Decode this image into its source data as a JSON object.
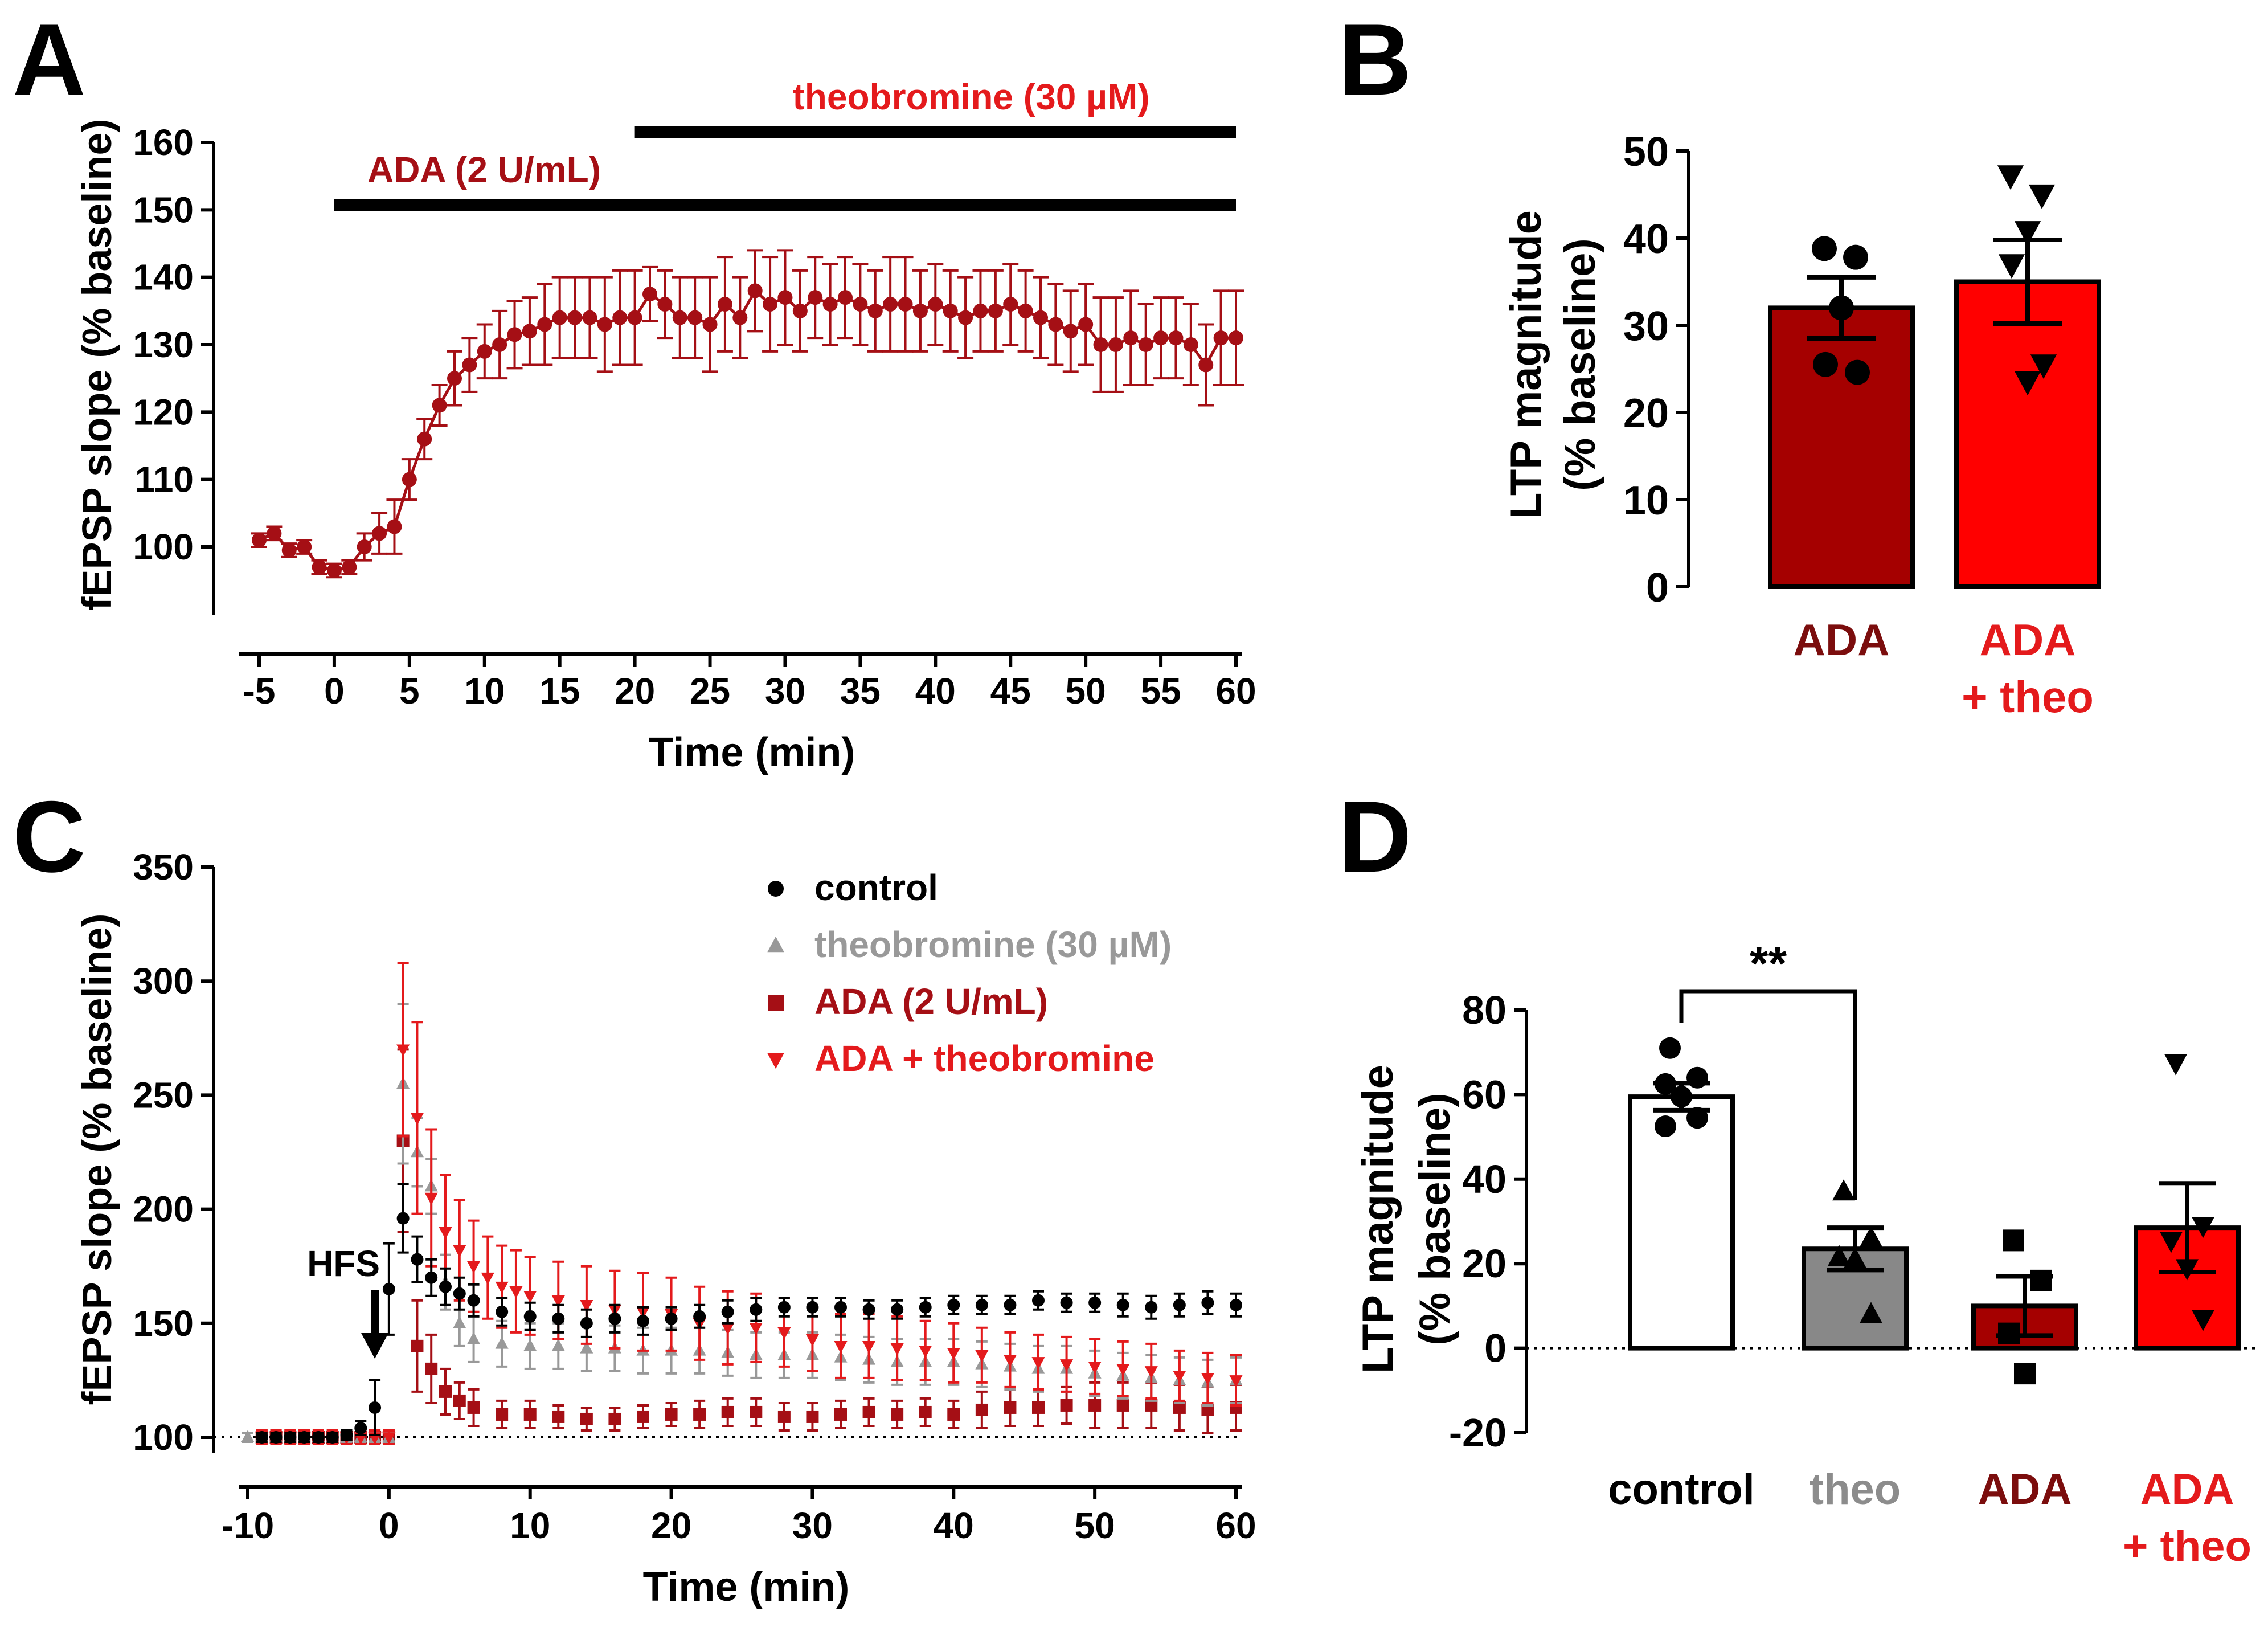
{
  "panel_letters": [
    "A",
    "B",
    "C",
    "D"
  ],
  "chart_data": [
    {
      "panel": "A",
      "type": "line",
      "xlabel": "Time (min)",
      "ylabel": "fEPSP slope (% baseline)",
      "xlim": [
        -5,
        60
      ],
      "ylim": [
        90,
        160
      ],
      "xticks": [
        "-5",
        "0",
        "5",
        "10",
        "15",
        "20",
        "25",
        "30",
        "35",
        "40",
        "45",
        "50",
        "55",
        "60"
      ],
      "yticks": [
        "100",
        "110",
        "120",
        "130",
        "140",
        "150",
        "160"
      ],
      "annotations": [
        {
          "text": "ADA (2 U/mL)",
          "x_start": 0,
          "x_end": 60,
          "y": 151,
          "color": "#a50f15"
        },
        {
          "text": "theobromine (30 µM)",
          "x_start": 20,
          "x_end": 60,
          "y": 162,
          "color": "#e41a1c"
        }
      ],
      "series": [
        {
          "color": "#a50f15",
          "x": [
            -5,
            -4,
            -3,
            -2,
            -1,
            0,
            1,
            2,
            3,
            4,
            5,
            6,
            7,
            8,
            9,
            10,
            11,
            12,
            13,
            14,
            15,
            16,
            17,
            18,
            19,
            20,
            21,
            22,
            23,
            24,
            25,
            26,
            27,
            28,
            29,
            30,
            31,
            32,
            33,
            34,
            35,
            36,
            37,
            38,
            39,
            40,
            41,
            42,
            43,
            44,
            45,
            46,
            47,
            48,
            49,
            50,
            51,
            52,
            53,
            54,
            55,
            56,
            57,
            58,
            59,
            60
          ],
          "values": [
            101,
            102,
            99.5,
            100,
            97,
            96.5,
            97,
            100,
            102,
            103,
            110,
            116,
            121,
            125,
            127,
            129,
            130,
            131.5,
            132,
            133,
            134,
            134,
            134,
            133,
            134,
            134,
            137.5,
            136,
            134,
            134,
            133,
            136,
            134,
            138,
            136,
            137,
            135,
            137,
            136,
            137,
            136,
            135,
            136,
            136,
            135,
            136,
            135,
            134,
            135,
            135,
            136,
            135,
            134,
            133,
            132,
            133,
            130,
            130,
            131,
            130,
            131,
            131,
            130,
            127,
            131,
            131
          ],
          "error": [
            1,
            1,
            1,
            1,
            1,
            1,
            1,
            2,
            3,
            4,
            3,
            3,
            3,
            4,
            4,
            4,
            5,
            5,
            5,
            6,
            6,
            6,
            6,
            7,
            7,
            7,
            4,
            5,
            6,
            6,
            7,
            7,
            6,
            6,
            7,
            7,
            6,
            6,
            6,
            6,
            6,
            6,
            7,
            7,
            6,
            6,
            6,
            6,
            6,
            6,
            6,
            6,
            6,
            6,
            6,
            6,
            7,
            7,
            7,
            6,
            6,
            6,
            6,
            6,
            7,
            7
          ]
        }
      ]
    },
    {
      "panel": "B",
      "type": "bar",
      "ylabel": "LTP magnitude (% baseline)",
      "ylabel_lines": [
        "LTP magnitude",
        "(% baseline)"
      ],
      "ylim": [
        0,
        50
      ],
      "yticks": [
        "0",
        "10",
        "20",
        "30",
        "40",
        "50"
      ],
      "bars": [
        {
          "label_lines": [
            "ADA"
          ],
          "label_color": "#7b0d0d",
          "fill": "#a50000",
          "value": 32,
          "sem": 3.5,
          "points": [
            38.8,
            37.8,
            32,
            25.5,
            24.6
          ],
          "marker": "circle"
        },
        {
          "label_lines": [
            "ADA",
            "+ theo"
          ],
          "label_color": "#e41a1c",
          "fill": "#ff0000",
          "value": 35,
          "sem": 4.8,
          "points": [
            47.2,
            45,
            40.8,
            37,
            25.5,
            23.6
          ],
          "marker": "triangle-down"
        }
      ]
    },
    {
      "panel": "C",
      "type": "scatter",
      "xlabel": "Time (min)",
      "ylabel": "fEPSP slope (% baseline)",
      "xlim": [
        -10,
        60
      ],
      "ylim": [
        90,
        350
      ],
      "xticks": [
        "-10",
        "0",
        "10",
        "20",
        "30",
        "40",
        "50",
        "60"
      ],
      "yticks": [
        "100",
        "150",
        "200",
        "250",
        "300",
        "350"
      ],
      "baseline": 100,
      "annotations": [
        {
          "text": "HFS",
          "x": -1,
          "y": 130
        }
      ],
      "legend_position": "top-right",
      "series": [
        {
          "name": "control",
          "color": "#000000",
          "marker": "circle",
          "x": [
            -9,
            -8,
            -7,
            -6,
            -5,
            -4,
            -3,
            -2,
            -1,
            0,
            1,
            2,
            3,
            4,
            5,
            6,
            8,
            10,
            12,
            14,
            16,
            18,
            20,
            22,
            24,
            26,
            28,
            30,
            32,
            34,
            36,
            38,
            40,
            42,
            44,
            46,
            48,
            50,
            52,
            54,
            56,
            58,
            60
          ],
          "values": [
            100,
            100,
            100,
            100,
            100,
            100,
            101,
            104,
            113,
            165,
            196,
            178,
            170,
            166,
            163,
            160,
            155,
            153,
            152,
            150,
            152,
            151,
            152,
            153,
            155,
            156,
            157,
            157,
            157,
            156,
            156,
            157,
            158,
            158,
            158,
            160,
            159,
            159,
            158,
            157,
            158,
            159,
            158
          ],
          "error": [
            2,
            2,
            2,
            2,
            2,
            2,
            2,
            3,
            12,
            20,
            15,
            10,
            8,
            8,
            7,
            7,
            6,
            6,
            6,
            6,
            6,
            6,
            5,
            5,
            5,
            5,
            4,
            4,
            4,
            4,
            4,
            4,
            4,
            4,
            4,
            4,
            4,
            4,
            5,
            5,
            5,
            5,
            5
          ]
        },
        {
          "name": "theobromine (30 µM)",
          "color": "#999999",
          "marker": "triangle-up",
          "x": [
            -10,
            -9,
            -8,
            -7,
            -6,
            -5,
            -4,
            -3,
            -2,
            -1,
            0,
            1,
            2,
            3,
            4,
            5,
            6,
            8,
            10,
            12,
            14,
            16,
            18,
            20,
            22,
            24,
            26,
            28,
            30,
            32,
            34,
            36,
            38,
            40,
            42,
            44,
            46,
            48,
            50,
            52,
            54,
            56,
            58,
            60
          ],
          "values": [
            100,
            100,
            100,
            100,
            100,
            100,
            100,
            100,
            100,
            100,
            100,
            255,
            225,
            210,
            168,
            150,
            143,
            141,
            140,
            140,
            139,
            139,
            138,
            138,
            138,
            137,
            136,
            136,
            136,
            135,
            134,
            133,
            133,
            133,
            132,
            131,
            130,
            130,
            128,
            127,
            126,
            125,
            124,
            125
          ],
          "error": [
            2,
            2,
            2,
            2,
            2,
            2,
            2,
            2,
            2,
            2,
            2,
            35,
            15,
            12,
            12,
            10,
            10,
            10,
            10,
            10,
            10,
            10,
            10,
            10,
            10,
            10,
            10,
            10,
            10,
            10,
            10,
            10,
            10,
            10,
            10,
            10,
            10,
            10,
            10,
            10,
            10,
            10,
            10,
            10
          ]
        },
        {
          "name": "ADA (2 U/mL)",
          "color": "#a50f15",
          "marker": "square",
          "x": [
            -9,
            -8,
            -7,
            -6,
            -5,
            -4,
            -3,
            -2,
            -1,
            0,
            1,
            2,
            3,
            4,
            5,
            6,
            8,
            10,
            12,
            14,
            16,
            18,
            20,
            22,
            24,
            26,
            28,
            30,
            32,
            34,
            36,
            38,
            40,
            42,
            44,
            46,
            48,
            50,
            52,
            54,
            56,
            58,
            60
          ],
          "values": [
            100,
            100,
            100,
            100,
            100,
            100,
            100,
            100,
            100,
            100,
            230,
            140,
            130,
            120,
            116,
            113,
            110,
            110,
            109,
            108,
            108,
            109,
            110,
            110,
            111,
            111,
            109,
            109,
            110,
            111,
            110,
            111,
            110,
            112,
            113,
            113,
            114,
            114,
            114,
            114,
            113,
            112,
            113
          ],
          "error": [
            3,
            3,
            3,
            3,
            3,
            3,
            3,
            3,
            3,
            3,
            40,
            20,
            15,
            10,
            8,
            8,
            6,
            6,
            5,
            5,
            5,
            5,
            5,
            6,
            6,
            6,
            6,
            6,
            6,
            6,
            6,
            6,
            6,
            8,
            8,
            8,
            8,
            10,
            10,
            10,
            10,
            10,
            10
          ]
        },
        {
          "name": "ADA + theobromine",
          "color": "#e41a1c",
          "marker": "triangle-down",
          "x": [
            -9,
            -8,
            -7,
            -6,
            -5,
            -4,
            -3,
            -2,
            -1,
            0,
            1,
            2,
            3,
            4,
            5,
            6,
            7,
            8,
            9,
            10,
            12,
            14,
            16,
            18,
            20,
            22,
            24,
            26,
            28,
            30,
            32,
            34,
            36,
            38,
            40,
            42,
            44,
            46,
            48,
            50,
            52,
            54,
            56,
            58,
            60
          ],
          "values": [
            100,
            100,
            100,
            100,
            100,
            100,
            100,
            100,
            100,
            100,
            270,
            240,
            205,
            190,
            182,
            175,
            170,
            166,
            164,
            162,
            160,
            158,
            156,
            155,
            154,
            150,
            148,
            148,
            146,
            143,
            140,
            140,
            139,
            138,
            137,
            136,
            134,
            133,
            132,
            131,
            130,
            129,
            127,
            126,
            125
          ],
          "error": [
            3,
            3,
            3,
            3,
            3,
            3,
            3,
            3,
            3,
            3,
            38,
            42,
            30,
            25,
            22,
            20,
            18,
            18,
            18,
            17,
            17,
            17,
            17,
            17,
            16,
            16,
            16,
            15,
            15,
            14,
            14,
            14,
            14,
            13,
            13,
            12,
            12,
            12,
            12,
            12,
            12,
            12,
            11,
            11,
            11
          ]
        }
      ]
    },
    {
      "panel": "D",
      "type": "bar",
      "ylabel": "LTP magnitude (% baseline)",
      "ylabel_lines": [
        "LTP magnitude",
        "(% baseline)"
      ],
      "ylim": [
        -20,
        80
      ],
      "yticks": [
        "-20",
        "0",
        "20",
        "40",
        "60",
        "80"
      ],
      "baseline": 0,
      "significance": {
        "text": "**",
        "between": [
          0,
          1
        ]
      },
      "bars": [
        {
          "label_lines": [
            "control"
          ],
          "label_color": "#000000",
          "fill": "#ffffff",
          "value": 59.5,
          "sem": 3.2,
          "points": [
            71,
            64,
            62.5,
            59.5,
            54.5,
            52.5
          ],
          "marker": "circle"
        },
        {
          "label_lines": [
            "theo"
          ],
          "label_color": "#8c8c8c",
          "fill": "#888888",
          "value": 23.5,
          "sem": 5,
          "points": [
            37,
            26,
            21.5,
            21,
            8
          ],
          "marker": "triangle-up"
        },
        {
          "label_lines": [
            "ADA"
          ],
          "label_color": "#7b0d0d",
          "fill": "#a50000",
          "value": 10,
          "sem": 7,
          "points": [
            25.5,
            16,
            3.5,
            -6
          ],
          "marker": "square"
        },
        {
          "label_lines": [
            "ADA",
            "+ theo"
          ],
          "label_color": "#e41a1c",
          "fill": "#ff0000",
          "value": 28.5,
          "sem": 10.5,
          "points": [
            67.5,
            29,
            25.5,
            19,
            7
          ],
          "marker": "triangle-down"
        }
      ]
    }
  ]
}
